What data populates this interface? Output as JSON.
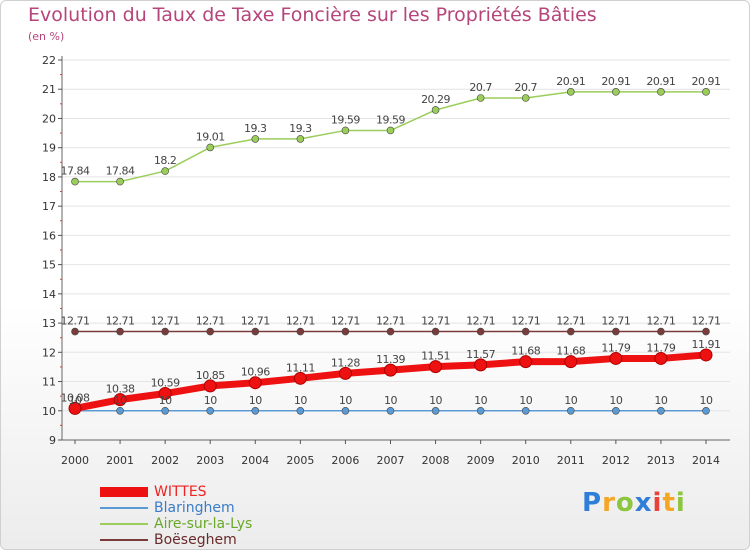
{
  "title": "Evolution du Taux de Taxe Foncière sur les Propriétés Bâties",
  "subtitle": "(en %)",
  "logo": {
    "letters": [
      "P",
      "r",
      "o",
      "x",
      "i",
      "t",
      "i"
    ],
    "colors": [
      "#2f7fd8",
      "#f5a623",
      "#8cc63f",
      "#2f7fd8",
      "#e8433a",
      "#f5a623",
      "#8cc63f"
    ]
  },
  "chart_data": {
    "type": "line",
    "title": "Evolution du Taux de Taxe Foncière sur les Propriétés Bâties",
    "ylabel": "(en %)",
    "xlabel": "",
    "ylim": [
      9,
      22
    ],
    "yticks": [
      "9",
      "10",
      "11",
      "12",
      "13",
      "14",
      "15",
      "16",
      "17",
      "18",
      "19",
      "20",
      "21",
      "22"
    ],
    "x": [
      "2000",
      "2001",
      "2002",
      "2003",
      "2004",
      "2005",
      "2006",
      "2007",
      "2008",
      "2009",
      "2010",
      "2011",
      "2012",
      "2013",
      "2014"
    ],
    "series": [
      {
        "name": "WITTES",
        "color": "#ee1111",
        "values": [
          10.08,
          10.38,
          10.59,
          10.85,
          10.96,
          11.11,
          11.28,
          11.39,
          11.51,
          11.57,
          11.68,
          11.68,
          11.79,
          11.79,
          11.91
        ],
        "labels": [
          "10.08",
          "10.38",
          "10.59",
          "10.85",
          "10.96",
          "11.11",
          "11.28",
          "11.39",
          "11.51",
          "11.57",
          "11.68",
          "11.68",
          "11.79",
          "11.79",
          "11.91"
        ]
      },
      {
        "name": "Blaringhem",
        "color": "#5b9bd5",
        "values": [
          10,
          10,
          10,
          10,
          10,
          10,
          10,
          10,
          10,
          10,
          10,
          10,
          10,
          10,
          10
        ],
        "labels": [
          "10",
          "10",
          "10",
          "10",
          "10",
          "10",
          "10",
          "10",
          "10",
          "10",
          "10",
          "10",
          "10",
          "10",
          "10"
        ]
      },
      {
        "name": "Aire-sur-la-Lys",
        "color": "#9acd5a",
        "values": [
          17.84,
          17.84,
          18.2,
          19.01,
          19.3,
          19.3,
          19.59,
          19.59,
          20.29,
          20.7,
          20.7,
          20.91,
          20.91,
          20.91,
          20.91
        ],
        "labels": [
          "17.84",
          "17.84",
          "18.2",
          "19.01",
          "19.3",
          "19.3",
          "19.59",
          "19.59",
          "20.29",
          "20.7",
          "20.7",
          "20.91",
          "20.91",
          "20.91",
          "20.91"
        ]
      },
      {
        "name": "Boëseghem",
        "color": "#7a3b3b",
        "values": [
          12.71,
          12.71,
          12.71,
          12.71,
          12.71,
          12.71,
          12.71,
          12.71,
          12.71,
          12.71,
          12.71,
          12.71,
          12.71,
          12.71,
          12.71
        ],
        "labels": [
          "12.71",
          "12.71",
          "12.71",
          "12.71",
          "12.71",
          "12.71",
          "12.71",
          "12.71",
          "12.71",
          "12.71",
          "12.71",
          "12.71",
          "12.71",
          "12.71",
          "12.71"
        ]
      }
    ],
    "legend_position": "bottom-left"
  }
}
